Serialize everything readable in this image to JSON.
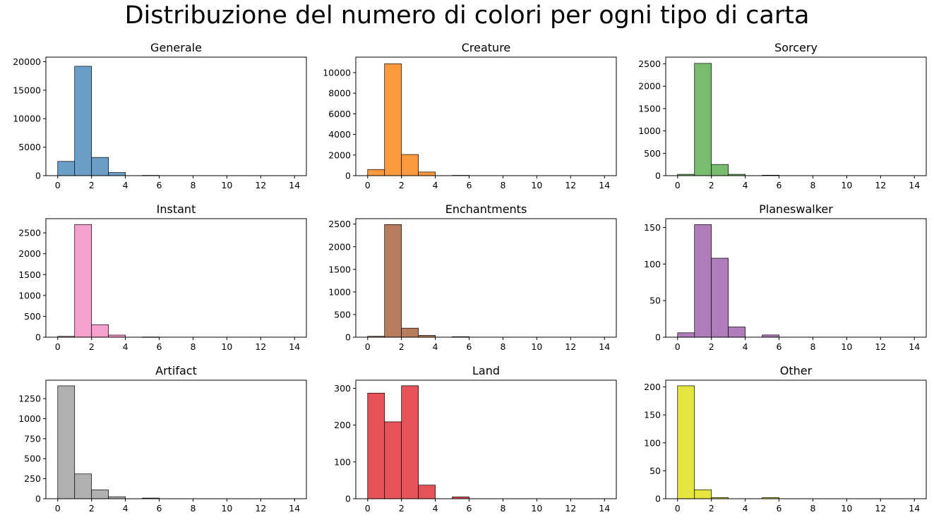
{
  "figure": {
    "title": "Distribuzione del numero di colori per ogni tipo di carta"
  },
  "chart_data": [
    {
      "type": "bar",
      "title": "Generale",
      "color": "#6a9fc9",
      "bin_edges": [
        0,
        1,
        2,
        3,
        4,
        5,
        6,
        7,
        8,
        9,
        10,
        11,
        12,
        13,
        14
      ],
      "values": [
        2500,
        19200,
        3200,
        550,
        0,
        50,
        0,
        0,
        0,
        0,
        0,
        0,
        0,
        0
      ],
      "xlim": [
        -0.7,
        14.7
      ],
      "ylim": [
        0,
        20800
      ],
      "xticks": [
        0,
        2,
        4,
        6,
        8,
        10,
        12,
        14
      ],
      "yticks": [
        0,
        5000,
        10000,
        15000,
        20000
      ]
    },
    {
      "type": "bar",
      "title": "Creature",
      "color": "#fd9a3f",
      "bin_edges": [
        0,
        1,
        2,
        3,
        4,
        5,
        6,
        7,
        8,
        9,
        10,
        11,
        12,
        13,
        14
      ],
      "values": [
        600,
        10850,
        2050,
        350,
        0,
        30,
        0,
        0,
        0,
        0,
        0,
        0,
        0,
        0
      ],
      "xlim": [
        -0.7,
        14.7
      ],
      "ylim": [
        0,
        11500
      ],
      "xticks": [
        0,
        2,
        4,
        6,
        8,
        10,
        12,
        14
      ],
      "yticks": [
        0,
        2000,
        4000,
        6000,
        8000,
        10000
      ]
    },
    {
      "type": "bar",
      "title": "Sorcery",
      "color": "#79bc6e",
      "bin_edges": [
        0,
        1,
        2,
        3,
        4,
        5,
        6,
        7,
        8,
        9,
        10,
        11,
        12,
        13,
        14
      ],
      "values": [
        30,
        2510,
        250,
        30,
        0,
        10,
        0,
        0,
        0,
        0,
        0,
        0,
        0,
        0
      ],
      "xlim": [
        -0.7,
        14.7
      ],
      "ylim": [
        0,
        2650
      ],
      "xticks": [
        0,
        2,
        4,
        6,
        8,
        10,
        12,
        14
      ],
      "yticks": [
        0,
        500,
        1000,
        1500,
        2000,
        2500
      ]
    },
    {
      "type": "bar",
      "title": "Instant",
      "color": "#f7a1ce",
      "bin_edges": [
        0,
        1,
        2,
        3,
        4,
        5,
        6,
        7,
        8,
        9,
        10,
        11,
        12,
        13,
        14
      ],
      "values": [
        20,
        2700,
        300,
        50,
        0,
        5,
        0,
        0,
        0,
        0,
        0,
        0,
        0,
        0
      ],
      "xlim": [
        -0.7,
        14.7
      ],
      "ylim": [
        0,
        2840
      ],
      "xticks": [
        0,
        2,
        4,
        6,
        8,
        10,
        12,
        14
      ],
      "yticks": [
        0,
        500,
        1000,
        1500,
        2000,
        2500
      ]
    },
    {
      "type": "bar",
      "title": "Enchantments",
      "color": "#b87d5e",
      "bin_edges": [
        0,
        1,
        2,
        3,
        4,
        5,
        6,
        7,
        8,
        9,
        10,
        11,
        12,
        13,
        14
      ],
      "values": [
        20,
        2490,
        200,
        40,
        0,
        10,
        0,
        0,
        0,
        0,
        0,
        0,
        0,
        0
      ],
      "xlim": [
        -0.7,
        14.7
      ],
      "ylim": [
        0,
        2620
      ],
      "xticks": [
        0,
        2,
        4,
        6,
        8,
        10,
        12,
        14
      ],
      "yticks": [
        0,
        500,
        1000,
        1500,
        2000,
        2500
      ]
    },
    {
      "type": "bar",
      "title": "Planeswalker",
      "color": "#b07dba",
      "bin_edges": [
        0,
        1,
        2,
        3,
        4,
        5,
        6,
        7,
        8,
        9,
        10,
        11,
        12,
        13,
        14
      ],
      "values": [
        6,
        154,
        108,
        14,
        0,
        3,
        0,
        0,
        0,
        0,
        0,
        0,
        0,
        0
      ],
      "xlim": [
        -0.7,
        14.7
      ],
      "ylim": [
        0,
        162
      ],
      "xticks": [
        0,
        2,
        4,
        6,
        8,
        10,
        12,
        14
      ],
      "yticks": [
        0,
        50,
        100,
        150
      ]
    },
    {
      "type": "bar",
      "title": "Artifact",
      "color": "#b0b0b0",
      "bin_edges": [
        0,
        1,
        2,
        3,
        4,
        5,
        6,
        7,
        8,
        9,
        10,
        11,
        12,
        13,
        14
      ],
      "values": [
        1410,
        310,
        110,
        25,
        0,
        8,
        0,
        0,
        0,
        0,
        0,
        0,
        0,
        0
      ],
      "xlim": [
        -0.7,
        14.7
      ],
      "ylim": [
        0,
        1480
      ],
      "xticks": [
        0,
        2,
        4,
        6,
        8,
        10,
        12,
        14
      ],
      "yticks": [
        0,
        250,
        500,
        750,
        1000,
        1250
      ]
    },
    {
      "type": "bar",
      "title": "Land",
      "color": "#e65356",
      "bin_edges": [
        0,
        1,
        2,
        3,
        4,
        5,
        6,
        7,
        8,
        9,
        10,
        11,
        12,
        13,
        14
      ],
      "values": [
        287,
        209,
        307,
        37,
        0,
        5,
        0,
        0,
        0,
        0,
        0,
        0,
        0,
        0
      ],
      "xlim": [
        -0.7,
        14.7
      ],
      "ylim": [
        0,
        322
      ],
      "xticks": [
        0,
        2,
        4,
        6,
        8,
        10,
        12,
        14
      ],
      "yticks": [
        0,
        100,
        200,
        300
      ]
    },
    {
      "type": "bar",
      "title": "Other",
      "color": "#e5e540",
      "bin_edges": [
        0,
        1,
        2,
        3,
        4,
        5,
        6,
        7,
        8,
        9,
        10,
        11,
        12,
        13,
        14
      ],
      "values": [
        202,
        16,
        2,
        0,
        0,
        2,
        0,
        0,
        0,
        0,
        0,
        0,
        0,
        0
      ],
      "xlim": [
        -0.7,
        14.7
      ],
      "ylim": [
        0,
        212
      ],
      "xticks": [
        0,
        2,
        4,
        6,
        8,
        10,
        12,
        14
      ],
      "yticks": [
        0,
        50,
        100,
        150,
        200
      ]
    }
  ]
}
